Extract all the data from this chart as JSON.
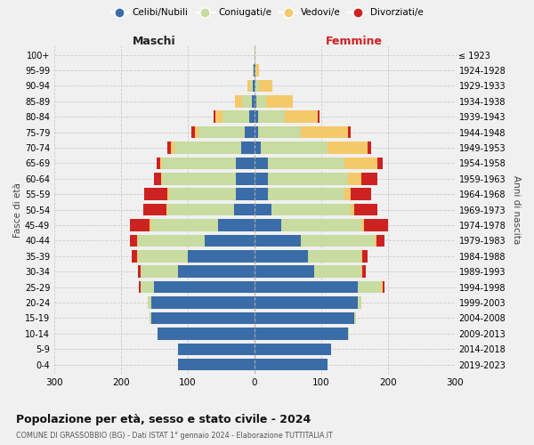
{
  "age_groups": [
    "0-4",
    "5-9",
    "10-14",
    "15-19",
    "20-24",
    "25-29",
    "30-34",
    "35-39",
    "40-44",
    "45-49",
    "50-54",
    "55-59",
    "60-64",
    "65-69",
    "70-74",
    "75-79",
    "80-84",
    "85-89",
    "90-94",
    "95-99",
    "100+"
  ],
  "birth_years": [
    "2019-2023",
    "2014-2018",
    "2009-2013",
    "2004-2008",
    "1999-2003",
    "1994-1998",
    "1989-1993",
    "1984-1988",
    "1979-1983",
    "1974-1978",
    "1969-1973",
    "1964-1968",
    "1959-1963",
    "1954-1958",
    "1949-1953",
    "1944-1948",
    "1939-1943",
    "1934-1938",
    "1929-1933",
    "1924-1928",
    "≤ 1923"
  ],
  "maschi": {
    "celibi": [
      115,
      115,
      145,
      155,
      155,
      150,
      115,
      100,
      75,
      55,
      30,
      28,
      28,
      28,
      20,
      14,
      8,
      4,
      2,
      1,
      0
    ],
    "coniugati": [
      0,
      0,
      0,
      2,
      5,
      20,
      55,
      75,
      100,
      100,
      100,
      100,
      110,
      110,
      100,
      70,
      40,
      15,
      4,
      1,
      0
    ],
    "vedovi": [
      0,
      0,
      0,
      0,
      0,
      0,
      0,
      1,
      1,
      2,
      2,
      2,
      2,
      3,
      5,
      5,
      10,
      10,
      5,
      1,
      0
    ],
    "divorziati": [
      0,
      0,
      0,
      0,
      0,
      3,
      5,
      8,
      10,
      30,
      35,
      35,
      10,
      5,
      5,
      5,
      3,
      0,
      0,
      0,
      0
    ]
  },
  "femmine": {
    "nubili": [
      110,
      115,
      140,
      150,
      155,
      155,
      90,
      80,
      70,
      40,
      25,
      20,
      20,
      20,
      10,
      5,
      5,
      3,
      2,
      1,
      0
    ],
    "coniugate": [
      0,
      0,
      2,
      2,
      5,
      35,
      70,
      80,
      110,
      120,
      120,
      115,
      120,
      115,
      100,
      65,
      40,
      15,
      5,
      1,
      0
    ],
    "vedove": [
      0,
      0,
      0,
      0,
      0,
      2,
      2,
      2,
      3,
      5,
      5,
      10,
      20,
      50,
      60,
      70,
      50,
      40,
      20,
      5,
      1
    ],
    "divorziate": [
      0,
      0,
      0,
      0,
      0,
      3,
      5,
      8,
      12,
      35,
      35,
      30,
      25,
      8,
      5,
      5,
      3,
      0,
      0,
      0,
      0
    ]
  },
  "colors": {
    "celibi": "#3a6ca8",
    "coniugati": "#c8dba0",
    "vedovi": "#f5c96a",
    "divorziati": "#cc2222"
  },
  "legend_labels": [
    "Celibi/Nubili",
    "Coniugati/e",
    "Vedovi/e",
    "Divorziati/e"
  ],
  "title": "Popolazione per età, sesso e stato civile - 2024",
  "subtitle": "COMUNE DI GRASSOBBIO (BG) - Dati ISTAT 1° gennaio 2024 - Elaborazione TUTTITALIA.IT",
  "xlabel_left": "Maschi",
  "xlabel_right": "Femmine",
  "ylabel_left": "Fasce di età",
  "ylabel_right": "Anni di nascita",
  "xlim": 300,
  "bg_color": "#f0f0f0"
}
